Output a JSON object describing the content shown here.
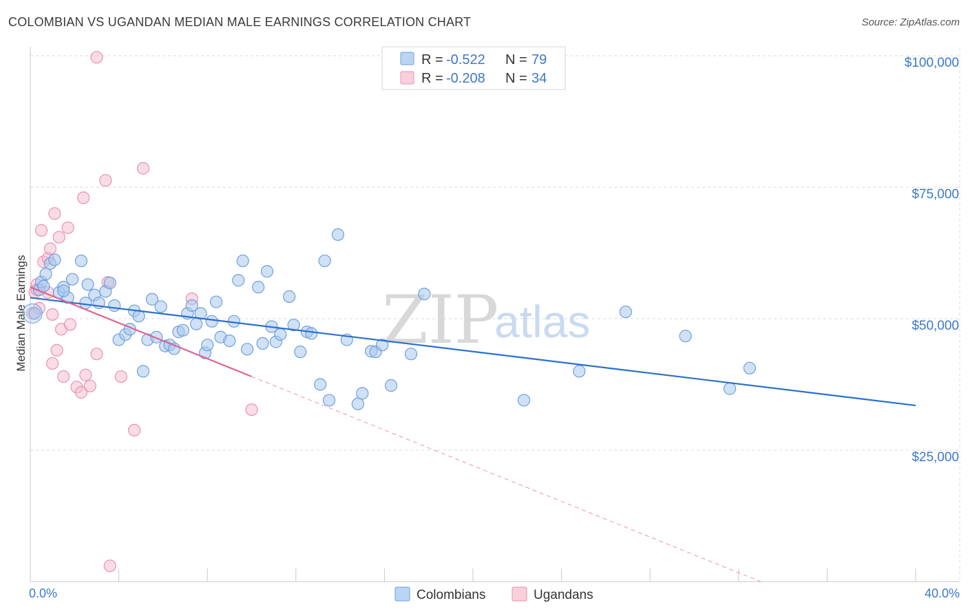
{
  "title": "COLOMBIAN VS UGANDAN MEDIAN MALE EARNINGS CORRELATION CHART",
  "source": "Source: ZipAtlas.com",
  "watermark": {
    "left": "ZIP",
    "right": "atlas"
  },
  "legend": {
    "r_label": "R =",
    "n_label": "N =",
    "entries": [
      {
        "name": "Colombians",
        "r": "-0.522",
        "n": "79"
      },
      {
        "name": "Ugandans",
        "r": "-0.208",
        "n": "34"
      }
    ]
  },
  "colors": {
    "blue_fill": "#a9c8ef",
    "blue_stroke": "#6f9fd9",
    "blue_line": "#2a6fd0",
    "pink_fill": "#f6c0d2",
    "pink_stroke": "#e892b0",
    "pink_line": "#e0628f",
    "grid": "#d8d8d8"
  },
  "chart_data": {
    "type": "scatter",
    "title": "COLOMBIAN VS UGANDAN MEDIAN MALE EARNINGS CORRELATION CHART",
    "xlabel": "",
    "ylabel": "Median Male Earnings",
    "xlim": [
      0,
      40
    ],
    "ylim": [
      0,
      100000
    ],
    "x_tick_labels": [
      "0.0%",
      "40.0%"
    ],
    "y_ticks": [
      25000,
      50000,
      75000,
      100000
    ],
    "y_tick_labels": [
      "$25,000",
      "$50,000",
      "$75,000",
      "$100,000"
    ],
    "series": [
      {
        "name": "Colombians",
        "trend": {
          "x": [
            0,
            40
          ],
          "y": [
            54000,
            33500
          ]
        },
        "points": [
          [
            0.2,
            51000
          ],
          [
            0.4,
            55500
          ],
          [
            0.5,
            57000
          ],
          [
            0.6,
            56200
          ],
          [
            0.7,
            58500
          ],
          [
            0.9,
            60500
          ],
          [
            1.1,
            61200
          ],
          [
            1.3,
            55000
          ],
          [
            1.5,
            56000
          ],
          [
            1.7,
            54000
          ],
          [
            1.9,
            57500
          ],
          [
            2.3,
            61000
          ],
          [
            2.5,
            53000
          ],
          [
            2.6,
            56500
          ],
          [
            2.9,
            54500
          ],
          [
            3.1,
            53000
          ],
          [
            3.4,
            55200
          ],
          [
            3.6,
            56800
          ],
          [
            3.8,
            52500
          ],
          [
            4.0,
            46000
          ],
          [
            4.3,
            47000
          ],
          [
            4.5,
            48000
          ],
          [
            4.7,
            51500
          ],
          [
            4.9,
            50500
          ],
          [
            5.1,
            40000
          ],
          [
            5.3,
            46000
          ],
          [
            5.5,
            53700
          ],
          [
            5.7,
            46500
          ],
          [
            5.9,
            52300
          ],
          [
            6.1,
            44800
          ],
          [
            6.3,
            45000
          ],
          [
            6.5,
            44300
          ],
          [
            6.7,
            47500
          ],
          [
            6.9,
            47800
          ],
          [
            7.1,
            51000
          ],
          [
            7.3,
            52500
          ],
          [
            7.5,
            49000
          ],
          [
            7.7,
            51000
          ],
          [
            7.9,
            43500
          ],
          [
            8.0,
            45000
          ],
          [
            8.2,
            49500
          ],
          [
            8.4,
            53200
          ],
          [
            8.6,
            46500
          ],
          [
            9.0,
            45800
          ],
          [
            9.2,
            49500
          ],
          [
            9.4,
            57300
          ],
          [
            9.6,
            61000
          ],
          [
            9.8,
            44200
          ],
          [
            10.3,
            56000
          ],
          [
            10.5,
            45300
          ],
          [
            10.7,
            59000
          ],
          [
            10.9,
            48500
          ],
          [
            11.1,
            45600
          ],
          [
            11.3,
            47000
          ],
          [
            11.7,
            54200
          ],
          [
            11.9,
            48800
          ],
          [
            12.2,
            43700
          ],
          [
            12.5,
            47500
          ],
          [
            12.7,
            47200
          ],
          [
            13.1,
            37500
          ],
          [
            13.3,
            61000
          ],
          [
            13.5,
            34500
          ],
          [
            13.9,
            66000
          ],
          [
            14.3,
            46000
          ],
          [
            14.8,
            33800
          ],
          [
            15.0,
            35800
          ],
          [
            15.4,
            43800
          ],
          [
            15.6,
            43700
          ],
          [
            15.9,
            45000
          ],
          [
            16.3,
            37300
          ],
          [
            17.2,
            43300
          ],
          [
            17.8,
            54700
          ],
          [
            22.3,
            34500
          ],
          [
            24.8,
            40000
          ],
          [
            26.9,
            51300
          ],
          [
            29.6,
            46700
          ],
          [
            31.6,
            36700
          ],
          [
            32.5,
            40600
          ],
          [
            1.5,
            55300
          ]
        ]
      },
      {
        "name": "Ugandans",
        "trend": {
          "x": [
            0,
            10
          ],
          "y": [
            56000,
            39000
          ]
        },
        "trend_extension": {
          "x": [
            10,
            33
          ],
          "y": [
            39000,
            0
          ]
        },
        "points": [
          [
            0.1,
            51000
          ],
          [
            0.2,
            55000
          ],
          [
            0.3,
            56500
          ],
          [
            0.4,
            52000
          ],
          [
            0.5,
            66800
          ],
          [
            0.6,
            60800
          ],
          [
            0.8,
            61500
          ],
          [
            0.9,
            63300
          ],
          [
            1.0,
            50800
          ],
          [
            1.0,
            41500
          ],
          [
            1.1,
            70000
          ],
          [
            1.2,
            44000
          ],
          [
            1.3,
            65500
          ],
          [
            1.4,
            48000
          ],
          [
            1.5,
            39000
          ],
          [
            1.7,
            67300
          ],
          [
            1.8,
            48900
          ],
          [
            2.1,
            37000
          ],
          [
            2.3,
            36000
          ],
          [
            2.4,
            73000
          ],
          [
            2.5,
            39300
          ],
          [
            2.7,
            37200
          ],
          [
            3.0,
            43300
          ],
          [
            3.4,
            76300
          ],
          [
            3.5,
            56900
          ],
          [
            3.0,
            99700
          ],
          [
            3.6,
            3000
          ],
          [
            4.1,
            39000
          ],
          [
            4.7,
            28800
          ],
          [
            5.1,
            78600
          ],
          [
            7.3,
            53800
          ],
          [
            10.0,
            32700
          ],
          [
            0.3,
            55500
          ],
          [
            0.8,
            55000
          ]
        ]
      }
    ]
  }
}
